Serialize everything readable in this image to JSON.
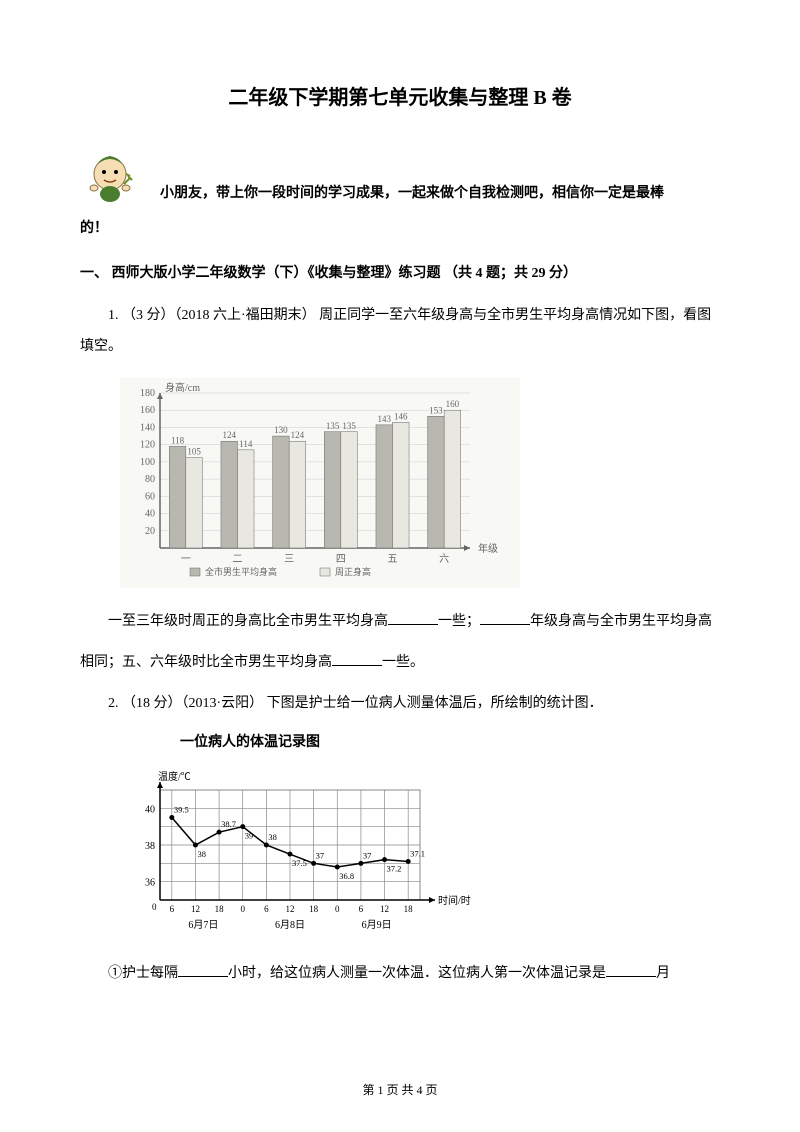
{
  "title": "二年级下学期第七单元收集与整理 B 卷",
  "intro_line1": "小朋友，带上你一段时间的学习成果，一起来做个自我检测吧，相信你一定是最棒",
  "intro_line2": "的！",
  "section": "一、 西师大版小学二年级数学（下）《收集与整理》练习题 （共 4 题；共 29 分）",
  "q1": {
    "prefix": "1.  （3 分）（2018 六上·福田期末） 周正同学一至六年级身高与全市男生平均身高情况如下图，看图填空。",
    "followup_a": "一至三年级时周正的身高比全市男生平均身高",
    "followup_b": "一些；",
    "followup_c": "年级身高与全市男生平均身高",
    "followup_d": "相同；五、六年级时比全市男生平均身高",
    "followup_e": "一些。"
  },
  "q2": {
    "prefix": "2.  （18 分）（2013·云阳） 下图是护士给一位病人测量体温后，所绘制的统计图．",
    "chart_title": "一位病人的体温记录图",
    "sub1_a": "①护士每隔",
    "sub1_b": "小时，给这位病人测量一次体温．这位病人第一次体温记录是",
    "sub1_c": "月"
  },
  "bar_chart": {
    "y_label": "身高/cm",
    "y_ticks": [
      20,
      40,
      60,
      80,
      100,
      120,
      140,
      160,
      180
    ],
    "categories": [
      "一",
      "二",
      "三",
      "四",
      "五",
      "六"
    ],
    "x_label": "年级",
    "series1_name": "全市男生平均身高",
    "series2_name": "周正身高",
    "series1_values": [
      118,
      124,
      130,
      135,
      143,
      153
    ],
    "series2_values": [
      105,
      114,
      124,
      135,
      146,
      160
    ],
    "colors": {
      "series1": "#b8b8b0",
      "series2": "#e8e8e0",
      "grid": "#cccccc",
      "axis": "#666666",
      "text": "#666666",
      "bg": "#f8f8f5"
    },
    "font_size": 10
  },
  "line_chart": {
    "y_label": "温度/℃",
    "x_label": "时间/时",
    "y_ticks": [
      36,
      38,
      40
    ],
    "x_ticks": [
      "6",
      "12",
      "18",
      "0",
      "6",
      "12",
      "18",
      "0",
      "6",
      "12",
      "18"
    ],
    "date_labels": [
      "6月7日",
      "6月8日",
      "6月9日"
    ],
    "values": [
      39.5,
      38,
      38.7,
      39,
      38,
      37.5,
      37,
      36.8,
      37,
      37.2,
      37.1
    ],
    "colors": {
      "line": "#000000",
      "grid": "#888888",
      "axis": "#000000",
      "text": "#000000",
      "bg": "#ffffff"
    },
    "font_size": 10
  },
  "footer": "第 1 页 共 4 页"
}
